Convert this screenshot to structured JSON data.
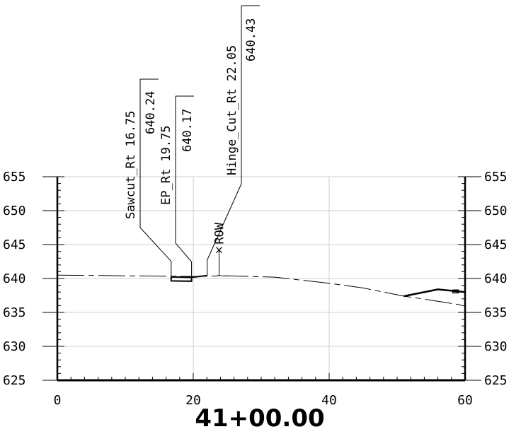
{
  "station": "41+00.00",
  "chart_data": {
    "type": "cross-section",
    "xlim": [
      0,
      60
    ],
    "ylim": [
      625,
      655
    ],
    "x_ticks": [
      "0",
      "20",
      "40",
      "60"
    ],
    "x_tick_values": [
      0,
      20,
      40,
      60
    ],
    "y_ticks": [
      "625",
      "630",
      "635",
      "640",
      "645",
      "650",
      "655"
    ],
    "y_tick_values": [
      625,
      630,
      635,
      640,
      645,
      650,
      655
    ],
    "grid": true,
    "callouts": [
      {
        "name": "Sawcut_Rt",
        "offset_text": "16.75",
        "elev_text": "640.24",
        "offset": 16.75,
        "elev": 640.24
      },
      {
        "name": "EP_Rt",
        "offset_text": "19.75",
        "elev_text": "640.17",
        "offset": 19.75,
        "elev": 640.17
      },
      {
        "name": "Hinge_Cut_Rt",
        "offset_text": "22.05",
        "elev_text": "640.43",
        "offset": 22.05,
        "elev": 640.43
      }
    ],
    "row_marker": {
      "label": "ROW",
      "offset": 23.8,
      "elev": 644.2
    },
    "existing_ground": {
      "x": [
        0,
        10,
        20,
        25,
        32,
        40,
        45,
        51,
        55,
        60
      ],
      "y": [
        640.5,
        640.4,
        640.3,
        640.4,
        640.2,
        639.3,
        638.6,
        637.4,
        636.8,
        636.0
      ]
    },
    "pavement_section": {
      "x": [
        16.75,
        16.75,
        19.75,
        19.75,
        16.75
      ],
      "y": [
        640.24,
        639.65,
        639.6,
        640.17,
        640.24
      ]
    },
    "proposed_right": {
      "x": [
        51,
        56,
        58,
        60
      ],
      "y": [
        637.4,
        638.4,
        638.2,
        638.0
      ]
    }
  }
}
